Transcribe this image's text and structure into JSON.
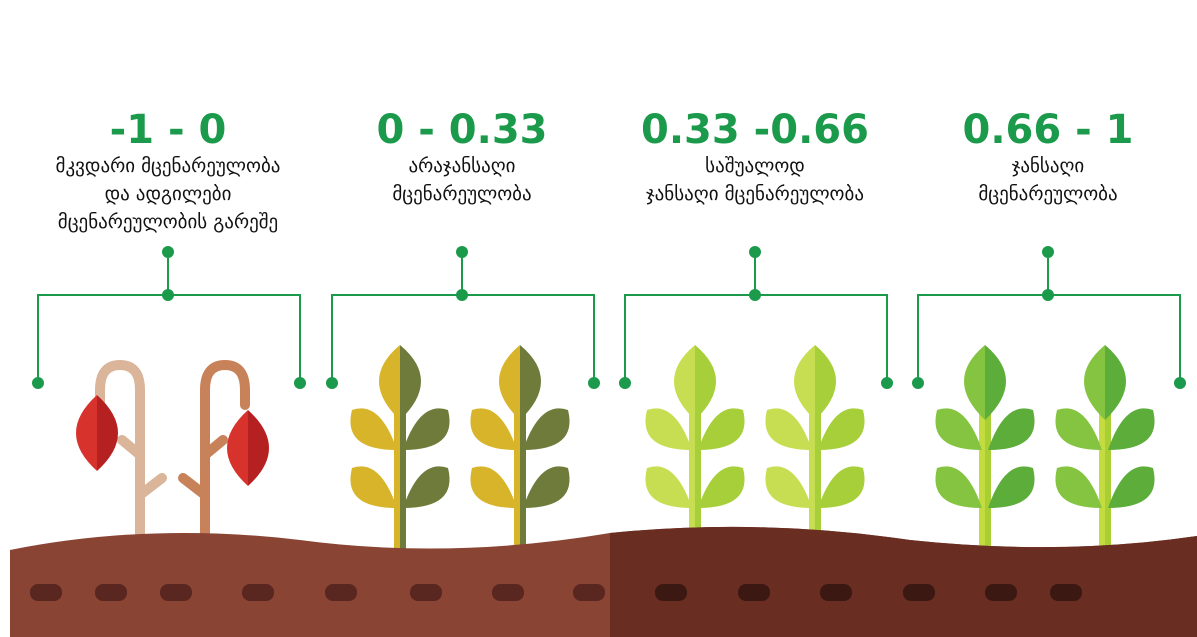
{
  "items": [
    {
      "range": "-1 - 0",
      "lines": [
        "მკვდარი მცენარეულობა",
        "და ადგილები",
        "მცენარეულობის გარეშე"
      ]
    },
    {
      "range": "0 - 0.33",
      "lines": [
        "არაჯანსაღი",
        "მცენარეულობა"
      ]
    },
    {
      "range": "0.33 -0.66",
      "lines": [
        "საშუალოდ",
        "ჯანსაღი მცენარეულობა"
      ]
    },
    {
      "range": "0.66 - 1",
      "lines": [
        "ჯანსაღი",
        "მცენარეულობა"
      ]
    }
  ]
}
